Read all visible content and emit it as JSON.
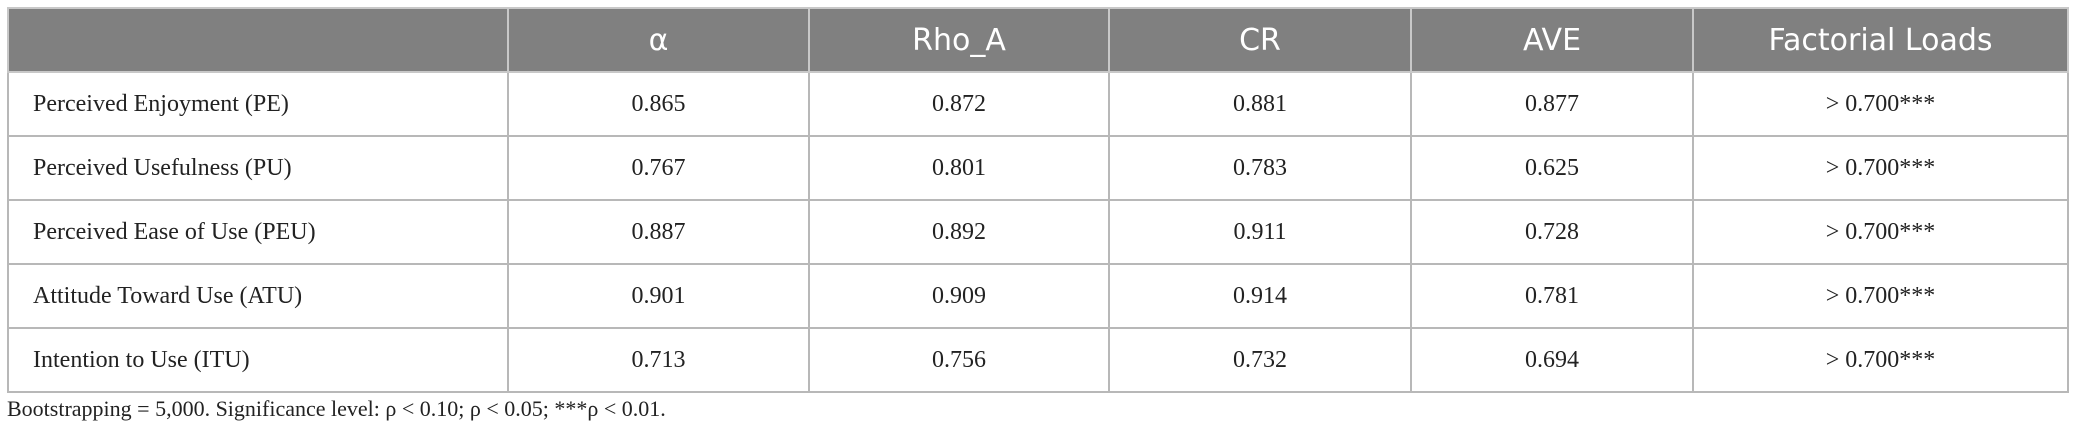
{
  "table": {
    "header": [
      "α",
      "Rho_A",
      "CR",
      "AVE",
      "Factorial Loads"
    ],
    "rows": [
      [
        "Perceived Enjoyment (PE)",
        "0.865",
        "0.872",
        "0.881",
        "0.877",
        "> 0.700***"
      ],
      [
        "Perceived Usefulness (PU)",
        "0.767",
        "0.801",
        "0.783",
        "0.625",
        "> 0.700***"
      ],
      [
        "Perceived Ease of Use (PEU)",
        "0.887",
        "0.892",
        "0.911",
        "0.728",
        "> 0.700***"
      ],
      [
        "Attitude Toward Use (ATU)",
        "0.901",
        "0.909",
        "0.914",
        "0.781",
        "> 0.700***"
      ],
      [
        "Intention to Use (ITU)",
        "0.713",
        "0.756",
        "0.732",
        "0.694",
        "> 0.700***"
      ]
    ]
  },
  "footnote": "Bootstrapping = 5,000. Significance level: ρ < 0.10; ρ < 0.05; ***ρ < 0.01."
}
